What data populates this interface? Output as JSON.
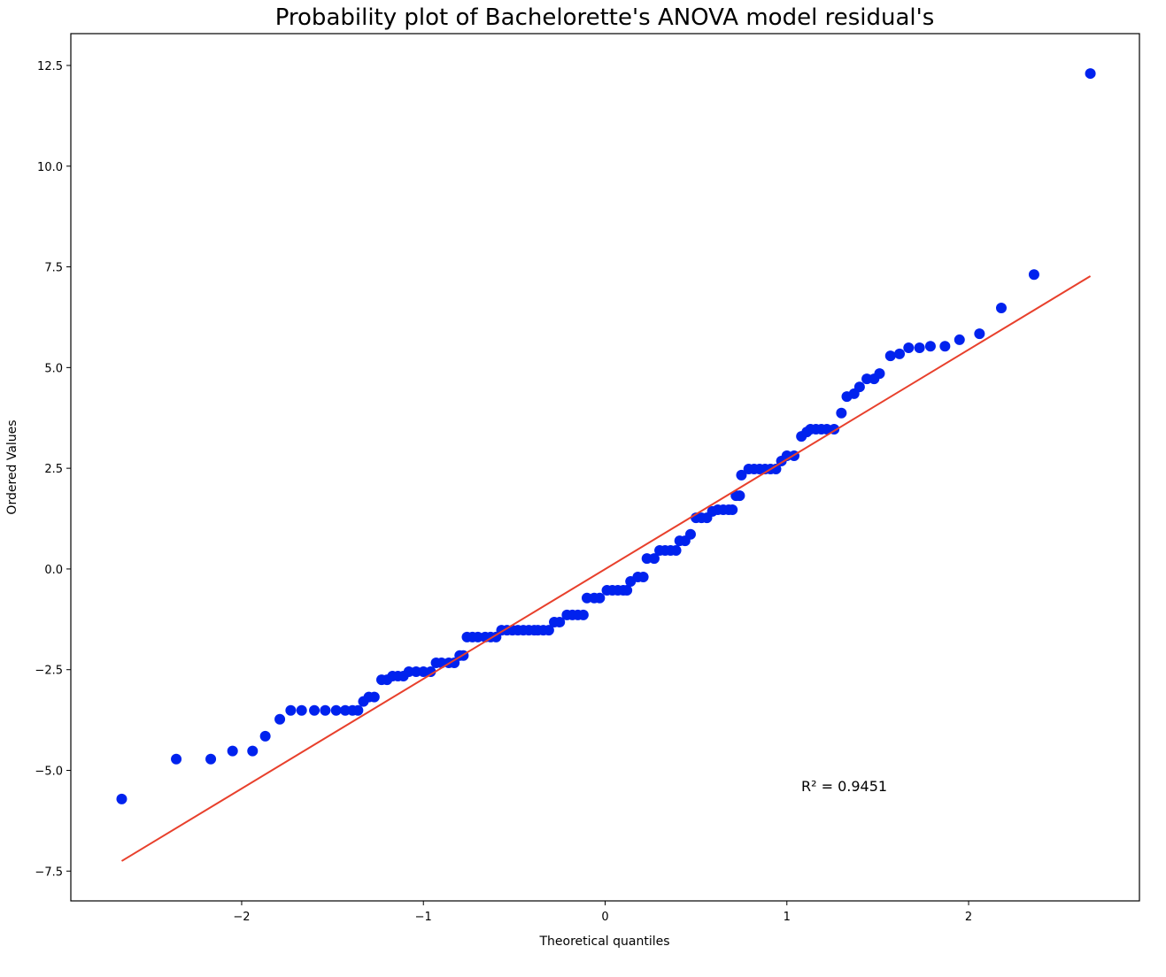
{
  "chart_data": {
    "type": "scatter",
    "title": "Probability plot of Bachelorette's ANOVA model residual's",
    "xlabel": "Theoretical quantiles",
    "ylabel": "Ordered Values",
    "annotation": "R² = 0.9451",
    "color": "#0022ee",
    "x": [
      -2.66,
      -2.36,
      -2.17,
      -2.05,
      -1.94,
      -1.87,
      -1.79,
      -1.73,
      -1.67,
      -1.6,
      -1.54,
      -1.48,
      -1.43,
      -1.39,
      -1.36,
      -1.33,
      -1.3,
      -1.27,
      -1.23,
      -1.2,
      -1.17,
      -1.14,
      -1.11,
      -1.08,
      -1.04,
      -1.0,
      -0.96,
      -0.93,
      -0.9,
      -0.86,
      -0.83,
      -0.8,
      -0.78,
      -0.76,
      -0.73,
      -0.7,
      -0.66,
      -0.63,
      -0.6,
      -0.57,
      -0.54,
      -0.51,
      -0.48,
      -0.45,
      -0.42,
      -0.39,
      -0.37,
      -0.34,
      -0.31,
      -0.28,
      -0.25,
      -0.21,
      -0.18,
      -0.15,
      -0.12,
      -0.1,
      -0.06,
      -0.03,
      0.01,
      0.04,
      0.07,
      0.1,
      0.12,
      0.14,
      0.18,
      0.21,
      0.23,
      0.27,
      0.3,
      0.33,
      0.36,
      0.39,
      0.41,
      0.44,
      0.47,
      0.5,
      0.53,
      0.56,
      0.59,
      0.62,
      0.65,
      0.68,
      0.7,
      0.72,
      0.74,
      0.75,
      0.79,
      0.82,
      0.85,
      0.88,
      0.91,
      0.94,
      0.97,
      1.0,
      1.04,
      1.08,
      1.11,
      1.13,
      1.16,
      1.19,
      1.22,
      1.26,
      1.3,
      1.33,
      1.37,
      1.4,
      1.44,
      1.48,
      1.51,
      1.57,
      1.62,
      1.67,
      1.73,
      1.79,
      1.87,
      1.95,
      2.06,
      2.18,
      2.36,
      2.67
    ],
    "values": [
      -5.71,
      -4.72,
      -4.72,
      -4.52,
      -4.52,
      -4.15,
      -3.73,
      -3.51,
      -3.51,
      -3.51,
      -3.51,
      -3.51,
      -3.51,
      -3.51,
      -3.51,
      -3.29,
      -3.18,
      -3.18,
      -2.75,
      -2.75,
      -2.66,
      -2.66,
      -2.66,
      -2.55,
      -2.55,
      -2.55,
      -2.55,
      -2.33,
      -2.33,
      -2.33,
      -2.33,
      -2.15,
      -2.15,
      -1.69,
      -1.69,
      -1.69,
      -1.69,
      -1.69,
      -1.69,
      -1.52,
      -1.52,
      -1.52,
      -1.52,
      -1.52,
      -1.52,
      -1.52,
      -1.52,
      -1.52,
      -1.52,
      -1.32,
      -1.32,
      -1.14,
      -1.14,
      -1.14,
      -1.14,
      -0.72,
      -0.72,
      -0.72,
      -0.53,
      -0.53,
      -0.53,
      -0.53,
      -0.53,
      -0.31,
      -0.2,
      -0.2,
      0.26,
      0.26,
      0.46,
      0.46,
      0.46,
      0.46,
      0.7,
      0.7,
      0.86,
      1.27,
      1.27,
      1.27,
      1.43,
      1.47,
      1.47,
      1.47,
      1.47,
      1.82,
      1.82,
      2.33,
      2.48,
      2.48,
      2.48,
      2.48,
      2.48,
      2.48,
      2.68,
      2.81,
      2.81,
      3.29,
      3.4,
      3.47,
      3.47,
      3.47,
      3.47,
      3.47,
      3.87,
      4.28,
      4.35,
      4.52,
      4.72,
      4.72,
      4.85,
      5.29,
      5.34,
      5.49,
      5.49,
      5.53,
      5.53,
      5.69,
      5.84,
      6.48,
      7.31,
      12.3
    ],
    "fit_line": {
      "color": "#e8402c",
      "x": [
        -2.66,
        2.67
      ],
      "values": [
        -7.25,
        7.27
      ]
    },
    "xlim": [
      -2.94,
      2.94
    ],
    "ylim": [
      -8.24,
      13.29
    ],
    "xticks": [
      {
        "value": -2,
        "label": "−2"
      },
      {
        "value": -1,
        "label": "−1"
      },
      0,
      1,
      2
    ],
    "yticks": [
      {
        "value": -7.5,
        "label": "−7.5"
      },
      {
        "value": -5,
        "label": "−5.0"
      },
      {
        "value": -2.5,
        "label": "−2.5"
      },
      {
        "value": 0,
        "label": "0.0"
      },
      {
        "value": 2.5,
        "label": "2.5"
      },
      {
        "value": 5,
        "label": "5.0"
      },
      {
        "value": 7.5,
        "label": "7.5"
      },
      {
        "value": 10,
        "label": "10.0"
      },
      {
        "value": 12.5,
        "label": "12.5"
      }
    ],
    "grid": false
  }
}
